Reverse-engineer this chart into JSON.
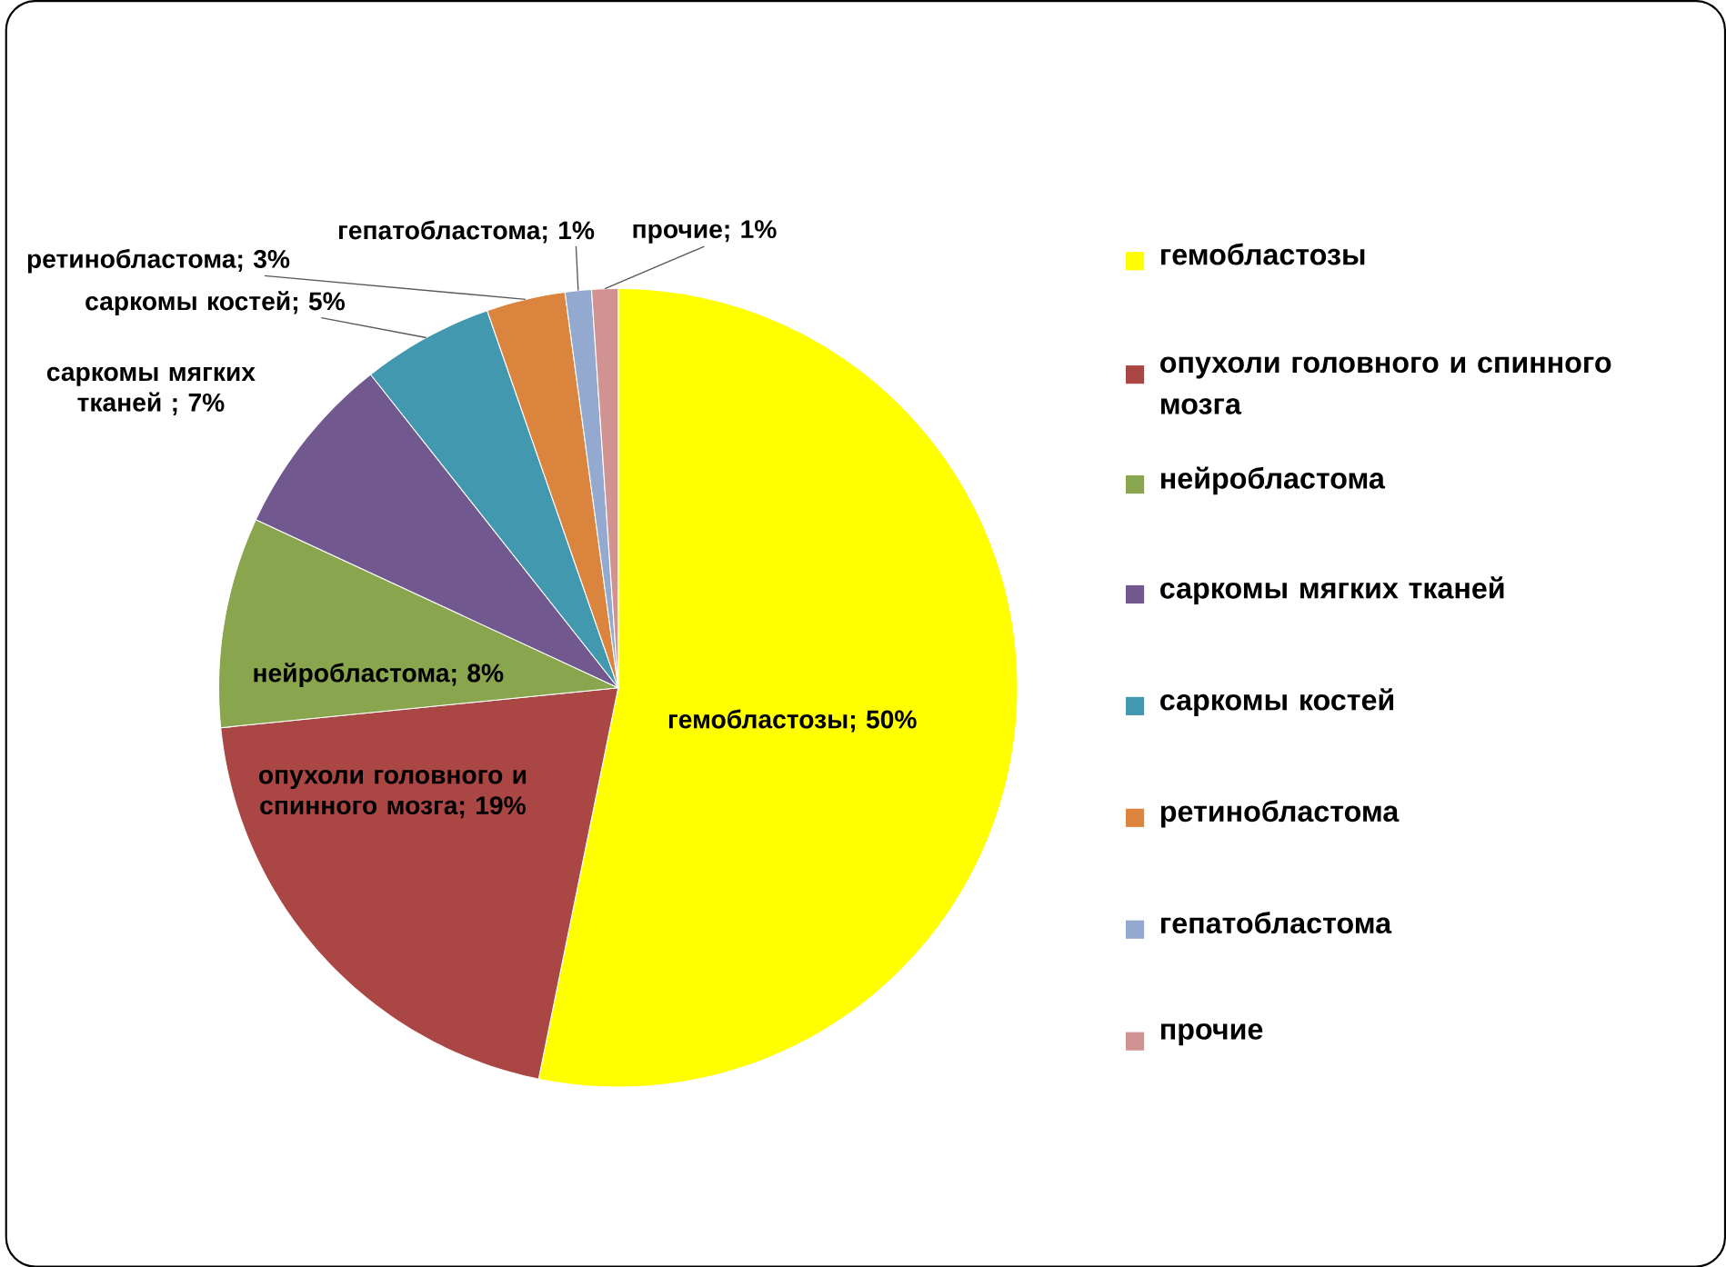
{
  "chart_data": {
    "type": "pie",
    "categories": [
      "гемобластозы",
      "опухоли головного и спинного мозга",
      "нейробластома",
      "саркомы мягких тканей",
      "саркомы костей",
      "ретинобластома",
      "гепатобластома",
      "прочие"
    ],
    "values": [
      50,
      19,
      8,
      7,
      5,
      3,
      1,
      1
    ],
    "colors": [
      "#ffff00",
      "#aa4643",
      "#89a54e",
      "#71588f",
      "#4198af",
      "#db843d",
      "#93a9cf",
      "#d19392"
    ],
    "value_labels": [
      "гемобластозы; 50%",
      "опухоли головного и спинного мозга; 19%",
      "нейробластома; 8%",
      "саркомы мягких тканей ; 7%",
      "саркомы костей; 5%",
      "ретинобластома; 3%",
      "гепатобластома; 1%",
      "прочие; 1%"
    ],
    "legend": "right"
  }
}
